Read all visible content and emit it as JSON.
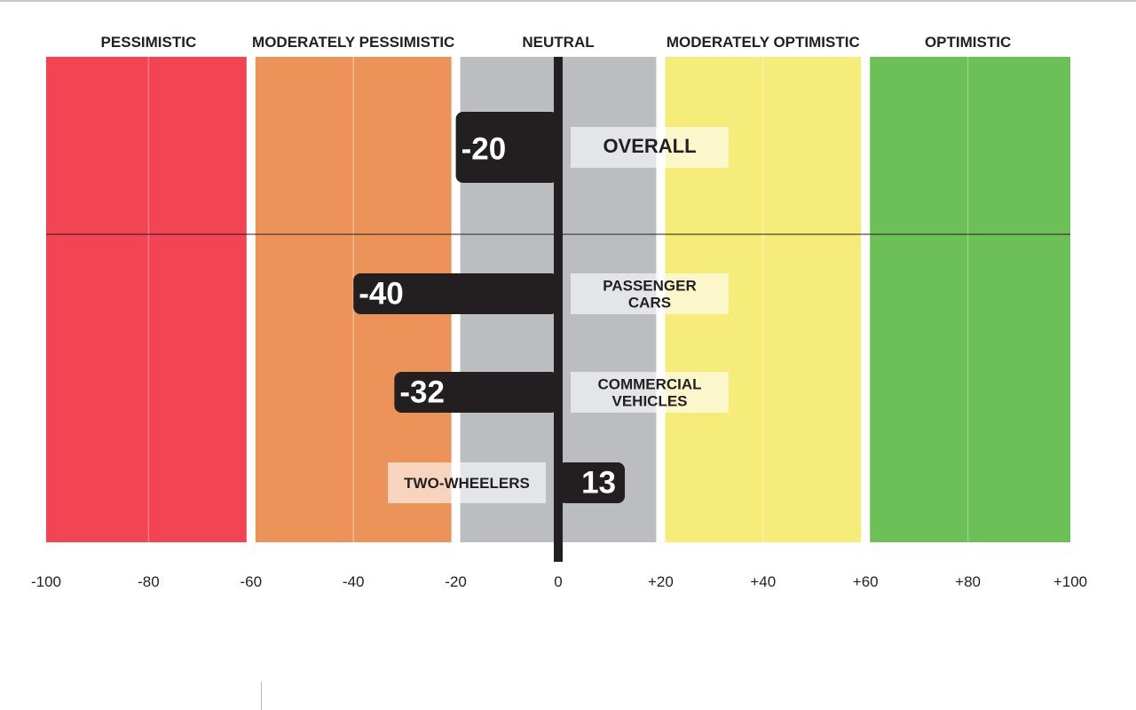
{
  "chart_data": {
    "type": "bar",
    "orientation": "horizontal",
    "xlim": [
      -100,
      100
    ],
    "grid": true,
    "zones": [
      {
        "label": "PESSIMISTIC",
        "from": -100,
        "to": -60,
        "color": "#f24453",
        "line": "#f57a85"
      },
      {
        "label": "MODERATELY PESSIMISTIC",
        "from": -60,
        "to": -20,
        "color": "#ec935a",
        "line": "#f3b98f"
      },
      {
        "label": "NEUTRAL",
        "from": -20,
        "to": 20,
        "color": "#bcbdc0",
        "line": "#d5d6d8"
      },
      {
        "label": "MODERATELY OPTIMISTIC",
        "from": 20,
        "to": 60,
        "color": "#f6ec7a",
        "line": "#faf3ae"
      },
      {
        "label": "OPTIMISTIC",
        "from": 60,
        "to": 100,
        "color": "#6cc057",
        "line": "#93d282"
      }
    ],
    "x_ticks": [
      "-100",
      "-80",
      "-60",
      "-40",
      "-20",
      "0",
      "+20",
      "+40",
      "+60",
      "+80",
      "+100"
    ],
    "x_tick_values": [
      -100,
      -80,
      -60,
      -40,
      -20,
      0,
      20,
      40,
      60,
      80,
      100
    ],
    "categories": [
      "OVERALL",
      "PASSENGER CARS",
      "COMMERCIAL VEHICLES",
      "TWO-WHEELERS"
    ],
    "category_lines": [
      [
        "OVERALL"
      ],
      [
        "PASSENGER",
        "CARS"
      ],
      [
        "COMMERCIAL",
        "VEHICLES"
      ],
      [
        "TWO-WHEELERS"
      ]
    ],
    "values": [
      -20,
      -40,
      -32,
      13
    ],
    "value_labels": [
      "-20",
      "-40",
      "-32",
      "13"
    ],
    "bar_color": "#231f20"
  }
}
